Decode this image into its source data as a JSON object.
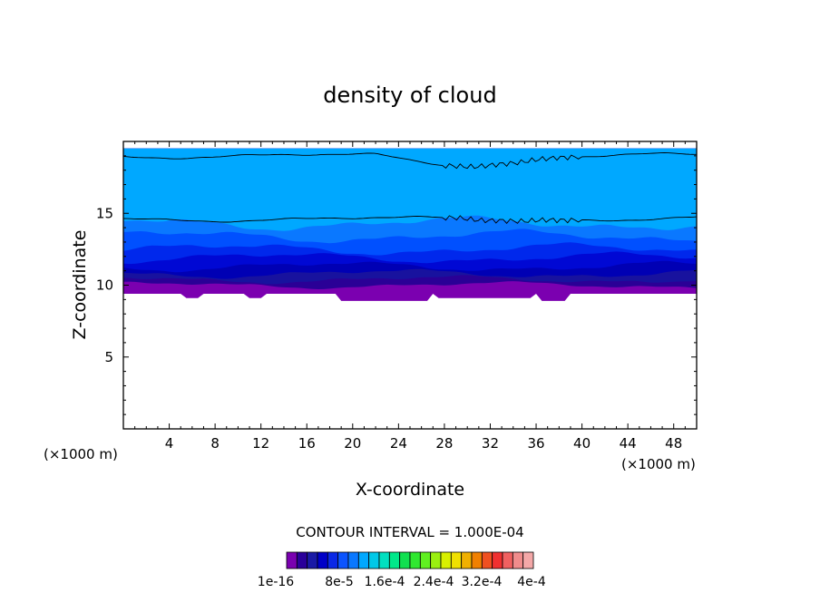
{
  "chart_data": {
    "type": "heatmap",
    "title": "density of cloud",
    "xlabel": "X-coordinate",
    "ylabel": "Z-coordinate",
    "x_unit": "(×1000 m)",
    "z_unit": "(×1000 m)",
    "xlim": [
      0,
      50
    ],
    "ylim": [
      0,
      20
    ],
    "x_ticks": [
      4,
      8,
      12,
      16,
      20,
      24,
      28,
      32,
      36,
      40,
      44,
      48
    ],
    "y_ticks": [
      5,
      10,
      15
    ],
    "cloud_base_km": 9.4,
    "cloud_top_km": 19.5,
    "contour_interval_label": "CONTOUR INTERVAL = 1.000E-04",
    "legend_labels": [
      "1e-16",
      "8e-5",
      "1.6e-4",
      "2.4e-4",
      "3.2e-4",
      "4e-4"
    ],
    "colorbar_colors": [
      "#7a00b0",
      "#2a009a",
      "#1a1aa6",
      "#0000c8",
      "#0a28e6",
      "#0b54ff",
      "#0a78ff",
      "#00a8ff",
      "#00c8e8",
      "#00e0c0",
      "#00e88a",
      "#10e050",
      "#30e830",
      "#60f020",
      "#9af010",
      "#d8f000",
      "#f0e000",
      "#f0b000",
      "#f08000",
      "#f05020",
      "#f03030",
      "#f06060",
      "#f08c8c",
      "#f4a8a8"
    ],
    "levels": [
      {
        "z": 9.4,
        "color": "#7b00b0"
      },
      {
        "z": 10.0,
        "color": "#2a0096"
      },
      {
        "z": 10.4,
        "color": "#18129e"
      },
      {
        "z": 10.8,
        "color": "#0000b4"
      },
      {
        "z": 11.3,
        "color": "#0008d4"
      },
      {
        "z": 11.9,
        "color": "#0028ec"
      },
      {
        "z": 12.5,
        "color": "#0050ff"
      },
      {
        "z": 13.4,
        "color": "#0a78ff"
      },
      {
        "z": 14.3,
        "color": "#00a8ff"
      }
    ],
    "contour_lines_z": [
      14.6,
      19.0
    ]
  }
}
